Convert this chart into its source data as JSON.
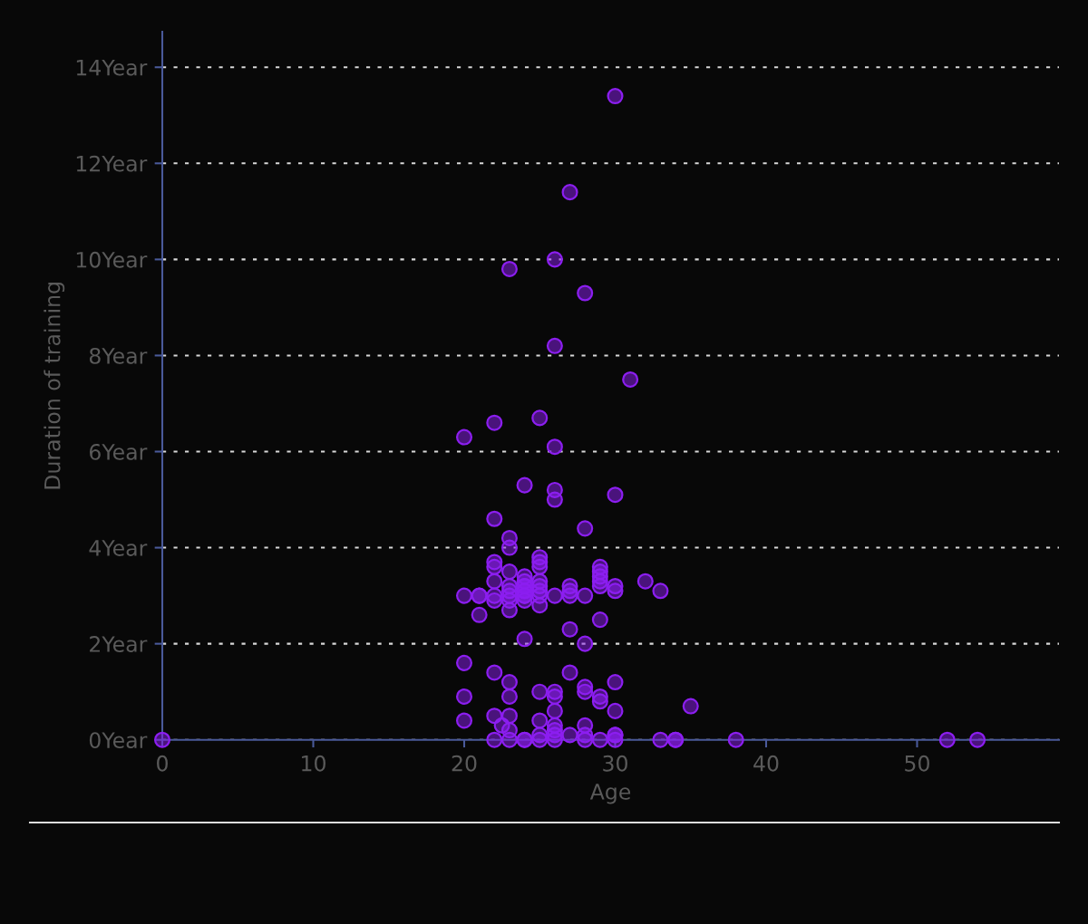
{
  "chart_data": {
    "type": "scatter",
    "xlabel": "Age",
    "ylabel": "Duration of training",
    "x": [
      0,
      30,
      27,
      26,
      23,
      28,
      26,
      31,
      20,
      22,
      25,
      26,
      24,
      26,
      26,
      30,
      22,
      28,
      23,
      23,
      25,
      25,
      25,
      22,
      22,
      23,
      22,
      22,
      22,
      20,
      21,
      21,
      21,
      23,
      23,
      23,
      23,
      23,
      24,
      24,
      24,
      24,
      24,
      24,
      24,
      24,
      24,
      25,
      25,
      25,
      25,
      25,
      26,
      27,
      27,
      27,
      28,
      29,
      29,
      29,
      29,
      29,
      29,
      30,
      30,
      32,
      33,
      24,
      27,
      28,
      20,
      20,
      20,
      22,
      22,
      22,
      23,
      23,
      23,
      22.5,
      23,
      23,
      24,
      24,
      25,
      25,
      25,
      25,
      26,
      26,
      26,
      26,
      26,
      26,
      26,
      27,
      27,
      28,
      28,
      28,
      28,
      28,
      29,
      29,
      29,
      30,
      30,
      30,
      30,
      30,
      35,
      33,
      34,
      34,
      38,
      52,
      54
    ],
    "values": [
      0,
      13.4,
      11.4,
      10,
      9.8,
      9.3,
      8.2,
      7.5,
      6.3,
      6.6,
      6.7,
      6.1,
      5.3,
      5.2,
      5.0,
      5.1,
      4.6,
      4.4,
      4.2,
      4.0,
      3.8,
      3.7,
      3.6,
      3.7,
      3.6,
      3.5,
      3.3,
      3.0,
      2.9,
      3.0,
      3.0,
      3.0,
      2.6,
      3.2,
      3.1,
      3.0,
      2.9,
      2.7,
      3.4,
      3.3,
      3.2,
      3.2,
      3.1,
      3.1,
      3.0,
      3.0,
      2.9,
      3.3,
      3.2,
      3.1,
      3.0,
      2.8,
      3.0,
      3.2,
      3.1,
      3.0,
      3.0,
      3.6,
      3.5,
      3.4,
      3.3,
      3.2,
      2.5,
      3.2,
      3.1,
      3.3,
      3.1,
      2.1,
      2.3,
      2.0,
      1.6,
      0.9,
      0.4,
      1.4,
      0.5,
      0,
      1.2,
      0.9,
      0.5,
      0.3,
      0.2,
      0,
      0,
      0,
      1.0,
      0.4,
      0.1,
      0,
      1.0,
      0.9,
      0.6,
      0.3,
      0.2,
      0.1,
      0,
      1.4,
      0.1,
      1.1,
      1.0,
      0.3,
      0.1,
      0,
      0.9,
      0.8,
      0,
      1.2,
      0.6,
      0.1,
      0.1,
      0,
      0.7,
      0,
      0,
      0,
      0,
      0,
      0
    ],
    "color": "#8c1ef0",
    "marker": "circle",
    "xlim": [
      0,
      59.4
    ],
    "ylim": [
      0,
      14.74
    ],
    "xticks": [
      0,
      10,
      20,
      30,
      40,
      50
    ],
    "yticks": [
      {
        "value": 0,
        "label": "0Year"
      },
      {
        "value": 2,
        "label": "2Year"
      },
      {
        "value": 4,
        "label": "4Year"
      },
      {
        "value": 6,
        "label": "6Year"
      },
      {
        "value": 8,
        "label": "8Year"
      },
      {
        "value": 10,
        "label": "10Year"
      },
      {
        "value": 12,
        "label": "12Year"
      },
      {
        "value": 14,
        "label": "14Year"
      }
    ],
    "grid": "y"
  }
}
